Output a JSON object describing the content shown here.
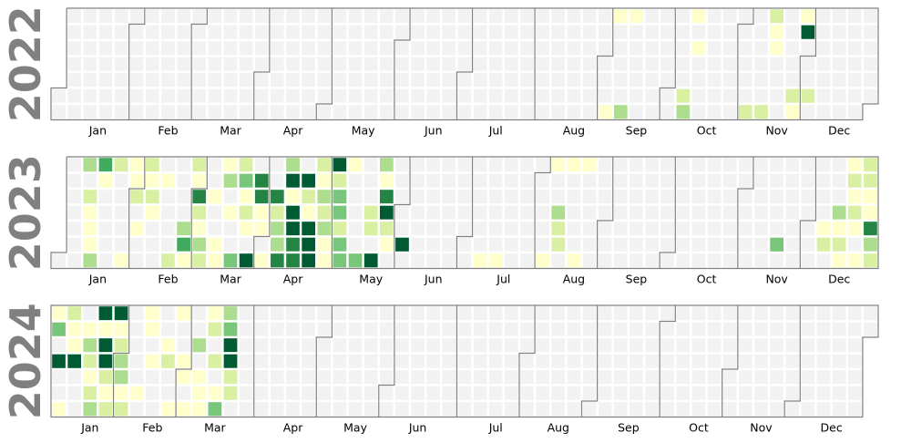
{
  "colors": {
    "empty": "#f2f2f2",
    "scale": [
      "#ffffcc",
      "#d9f0a3",
      "#addd8e",
      "#78c679",
      "#41ab5d",
      "#238443",
      "#005a32"
    ],
    "boundary": "#808080",
    "year_label": "#808080"
  },
  "chart_data": {
    "type": "heatmap",
    "subtype": "calendar",
    "value_scale": [
      1,
      7
    ],
    "grid": true,
    "legend": "none",
    "months": [
      "Jan",
      "Feb",
      "Mar",
      "Apr",
      "May",
      "Jun",
      "Jul",
      "Aug",
      "Sep",
      "Oct",
      "Nov",
      "Dec"
    ],
    "years": [
      {
        "year": "2022",
        "days": [
          [
            "2022-09-04",
            1
          ],
          [
            "2022-09-05",
            1
          ],
          [
            "2022-09-11",
            3
          ],
          [
            "2022-09-12",
            1
          ],
          [
            "2022-10-08",
            2
          ],
          [
            "2022-10-09",
            3
          ],
          [
            "2022-10-10",
            1
          ],
          [
            "2022-10-12",
            1
          ],
          [
            "2022-11-06",
            2
          ],
          [
            "2022-11-13",
            2
          ],
          [
            "2022-11-14",
            2
          ],
          [
            "2022-11-15",
            1
          ],
          [
            "2022-11-16",
            1
          ],
          [
            "2022-11-26",
            2
          ],
          [
            "2022-11-27",
            1
          ],
          [
            "2022-11-28",
            1
          ],
          [
            "2022-11-29",
            7
          ],
          [
            "2022-12-03",
            2
          ]
        ]
      },
      {
        "year": "2023",
        "days": [
          [
            "2023-01-09",
            3
          ],
          [
            "2023-01-11",
            2
          ],
          [
            "2023-01-12",
            1
          ],
          [
            "2023-01-13",
            1
          ],
          [
            "2023-01-14",
            1
          ],
          [
            "2023-01-15",
            3
          ],
          [
            "2023-01-16",
            5
          ],
          [
            "2023-01-17",
            1
          ],
          [
            "2023-01-23",
            2
          ],
          [
            "2023-01-29",
            1
          ],
          [
            "2023-01-30",
            1
          ],
          [
            "2023-01-31",
            1
          ],
          [
            "2023-02-01",
            2
          ],
          [
            "2023-02-03",
            1
          ],
          [
            "2023-02-06",
            2
          ],
          [
            "2023-02-07",
            1
          ],
          [
            "2023-02-08",
            2
          ],
          [
            "2023-02-09",
            1
          ],
          [
            "2023-02-14",
            1
          ],
          [
            "2023-02-19",
            2
          ],
          [
            "2023-02-24",
            3
          ],
          [
            "2023-02-25",
            5
          ],
          [
            "2023-02-26",
            1
          ],
          [
            "2023-02-27",
            2
          ],
          [
            "2023-02-28",
            1
          ],
          [
            "2023-03-01",
            6
          ],
          [
            "2023-03-02",
            2
          ],
          [
            "2023-03-03",
            1
          ],
          [
            "2023-03-04",
            3
          ],
          [
            "2023-03-05",
            2
          ],
          [
            "2023-03-08",
            1
          ],
          [
            "2023-03-11",
            1
          ],
          [
            "2023-03-12",
            1
          ],
          [
            "2023-03-13",
            1
          ],
          [
            "2023-03-14",
            3
          ],
          [
            "2023-03-16",
            1
          ],
          [
            "2023-03-19",
            4
          ],
          [
            "2023-03-20",
            2
          ],
          [
            "2023-03-21",
            4
          ],
          [
            "2023-03-22",
            1
          ],
          [
            "2023-03-23",
            2
          ],
          [
            "2023-03-24",
            1
          ],
          [
            "2023-03-26",
            7
          ],
          [
            "2023-03-28",
            6
          ],
          [
            "2023-03-29",
            6
          ],
          [
            "2023-03-30",
            1
          ],
          [
            "2023-03-31",
            1
          ],
          [
            "2023-04-02",
            1
          ],
          [
            "2023-04-05",
            6
          ],
          [
            "2023-04-06",
            2
          ],
          [
            "2023-04-07",
            3
          ],
          [
            "2023-04-08",
            3
          ],
          [
            "2023-04-09",
            6
          ],
          [
            "2023-04-10",
            3
          ],
          [
            "2023-04-11",
            7
          ],
          [
            "2023-04-12",
            1
          ],
          [
            "2023-04-13",
            7
          ],
          [
            "2023-04-14",
            7
          ],
          [
            "2023-04-15",
            6
          ],
          [
            "2023-04-16",
            6
          ],
          [
            "2023-04-18",
            7
          ],
          [
            "2023-04-19",
            2
          ],
          [
            "2023-04-20",
            1
          ],
          [
            "2023-04-21",
            7
          ],
          [
            "2023-04-22",
            7
          ],
          [
            "2023-04-23",
            7
          ],
          [
            "2023-04-24",
            2
          ],
          [
            "2023-04-25",
            1
          ],
          [
            "2023-04-26",
            3
          ],
          [
            "2023-04-27",
            2
          ],
          [
            "2023-04-28",
            3
          ],
          [
            "2023-04-29",
            1
          ],
          [
            "2023-04-30",
            1
          ],
          [
            "2023-05-01",
            7
          ],
          [
            "2023-05-02",
            2
          ],
          [
            "2023-05-03",
            4
          ],
          [
            "2023-05-04",
            4
          ],
          [
            "2023-05-05",
            2
          ],
          [
            "2023-05-06",
            4
          ],
          [
            "2023-05-07",
            4
          ],
          [
            "2023-05-08",
            1
          ],
          [
            "2023-05-14",
            4
          ],
          [
            "2023-05-18",
            2
          ],
          [
            "2023-05-19",
            2
          ],
          [
            "2023-05-21",
            7
          ],
          [
            "2023-05-22",
            3
          ],
          [
            "2023-05-23",
            1
          ],
          [
            "2023-05-24",
            6
          ],
          [
            "2023-05-25",
            7
          ],
          [
            "2023-05-26",
            2
          ],
          [
            "2023-05-27",
            1
          ],
          [
            "2023-06-03",
            7
          ],
          [
            "2023-07-09",
            1
          ],
          [
            "2023-07-16",
            1
          ],
          [
            "2023-08-06",
            1
          ],
          [
            "2023-08-07",
            1
          ],
          [
            "2023-08-10",
            3
          ],
          [
            "2023-08-11",
            2
          ],
          [
            "2023-08-12",
            2
          ],
          [
            "2023-08-14",
            1
          ],
          [
            "2023-08-20",
            1
          ],
          [
            "2023-08-21",
            1
          ],
          [
            "2023-11-18",
            4
          ],
          [
            "2023-12-08",
            1
          ],
          [
            "2023-12-09",
            2
          ],
          [
            "2023-12-14",
            3
          ],
          [
            "2023-12-15",
            1
          ],
          [
            "2023-12-16",
            2
          ],
          [
            "2023-12-17",
            1
          ],
          [
            "2023-12-18",
            1
          ],
          [
            "2023-12-19",
            2
          ],
          [
            "2023-12-20",
            1
          ],
          [
            "2023-12-21",
            2
          ],
          [
            "2023-12-22",
            1
          ],
          [
            "2023-12-24",
            1
          ],
          [
            "2023-12-25",
            2
          ],
          [
            "2023-12-26",
            2
          ],
          [
            "2023-12-27",
            1
          ],
          [
            "2023-12-28",
            1
          ],
          [
            "2023-12-29",
            6
          ],
          [
            "2023-12-30",
            3
          ],
          [
            "2023-12-31",
            2
          ]
        ]
      },
      {
        "year": "2024",
        "days": [
          [
            "2024-01-01",
            1
          ],
          [
            "2024-01-02",
            4
          ],
          [
            "2024-01-04",
            7
          ],
          [
            "2024-01-07",
            1
          ],
          [
            "2024-01-08",
            2
          ],
          [
            "2024-01-09",
            1
          ],
          [
            "2024-01-10",
            1
          ],
          [
            "2024-01-11",
            7
          ],
          [
            "2024-01-16",
            1
          ],
          [
            "2024-01-17",
            3
          ],
          [
            "2024-01-18",
            2
          ],
          [
            "2024-01-19",
            1
          ],
          [
            "2024-01-20",
            2
          ],
          [
            "2024-01-21",
            3
          ],
          [
            "2024-01-22",
            7
          ],
          [
            "2024-01-23",
            1
          ],
          [
            "2024-01-24",
            7
          ],
          [
            "2024-01-25",
            7
          ],
          [
            "2024-01-26",
            2
          ],
          [
            "2024-01-27",
            1
          ],
          [
            "2024-01-28",
            2
          ],
          [
            "2024-01-29",
            7
          ],
          [
            "2024-01-30",
            1
          ],
          [
            "2024-01-31",
            2
          ],
          [
            "2024-02-01",
            3
          ],
          [
            "2024-02-02",
            3
          ],
          [
            "2024-02-03",
            1
          ],
          [
            "2024-02-04",
            2
          ],
          [
            "2024-02-10",
            1
          ],
          [
            "2024-02-12",
            1
          ],
          [
            "2024-02-13",
            1
          ],
          [
            "2024-02-15",
            1
          ],
          [
            "2024-02-21",
            1
          ],
          [
            "2024-02-22",
            2
          ],
          [
            "2024-02-25",
            1
          ],
          [
            "2024-02-26",
            1
          ],
          [
            "2024-02-29",
            1
          ],
          [
            "2024-03-01",
            1
          ],
          [
            "2024-03-03",
            1
          ],
          [
            "2024-03-06",
            3
          ],
          [
            "2024-03-08",
            1
          ],
          [
            "2024-03-09",
            1
          ],
          [
            "2024-03-10",
            1
          ],
          [
            "2024-03-11",
            1
          ],
          [
            "2024-03-12",
            2
          ],
          [
            "2024-03-14",
            2
          ],
          [
            "2024-03-16",
            1
          ],
          [
            "2024-03-17",
            4
          ],
          [
            "2024-03-18",
            3
          ],
          [
            "2024-03-19",
            4
          ],
          [
            "2024-03-20",
            7
          ],
          [
            "2024-03-21",
            7
          ],
          [
            "2024-03-22",
            2
          ],
          [
            "2024-03-23",
            2
          ]
        ]
      }
    ]
  }
}
